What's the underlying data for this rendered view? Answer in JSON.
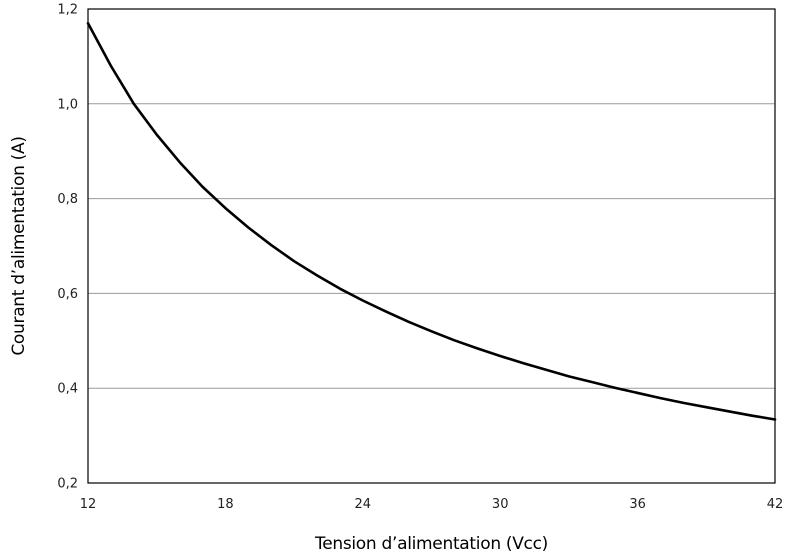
{
  "chart_data": {
    "type": "line",
    "title": "",
    "xlabel": "Tension d’alimentation (Vcc)",
    "ylabel": "Courant d’alimentation (A)",
    "xlim": [
      12,
      42
    ],
    "ylim": [
      0.2,
      1.2
    ],
    "x_ticks": [
      12,
      18,
      24,
      30,
      36,
      42
    ],
    "x_tick_labels": [
      "12",
      "18",
      "24",
      "30",
      "36",
      "42"
    ],
    "y_ticks": [
      0.2,
      0.4,
      0.6,
      0.8,
      1.0,
      1.2
    ],
    "y_tick_labels": [
      "0,2",
      "0,4",
      "0,6",
      "0,8",
      "1,0",
      "1,2"
    ],
    "grid": {
      "horizontal": true,
      "vertical": false
    },
    "series": [
      {
        "color": "#000000",
        "x": [
          12,
          13,
          14,
          15,
          16,
          17,
          18,
          19,
          20,
          21,
          22,
          23,
          24,
          25,
          26,
          27,
          28,
          29,
          30,
          31,
          32,
          33,
          34,
          35,
          36,
          37,
          38,
          39,
          40,
          41,
          42
        ],
        "y": [
          1.17,
          1.08,
          1.0,
          0.935,
          0.877,
          0.825,
          0.78,
          0.739,
          0.702,
          0.668,
          0.638,
          0.61,
          0.585,
          0.562,
          0.54,
          0.52,
          0.501,
          0.484,
          0.468,
          0.453,
          0.439,
          0.425,
          0.413,
          0.401,
          0.39,
          0.379,
          0.369,
          0.36,
          0.351,
          0.342,
          0.334
        ]
      }
    ]
  }
}
